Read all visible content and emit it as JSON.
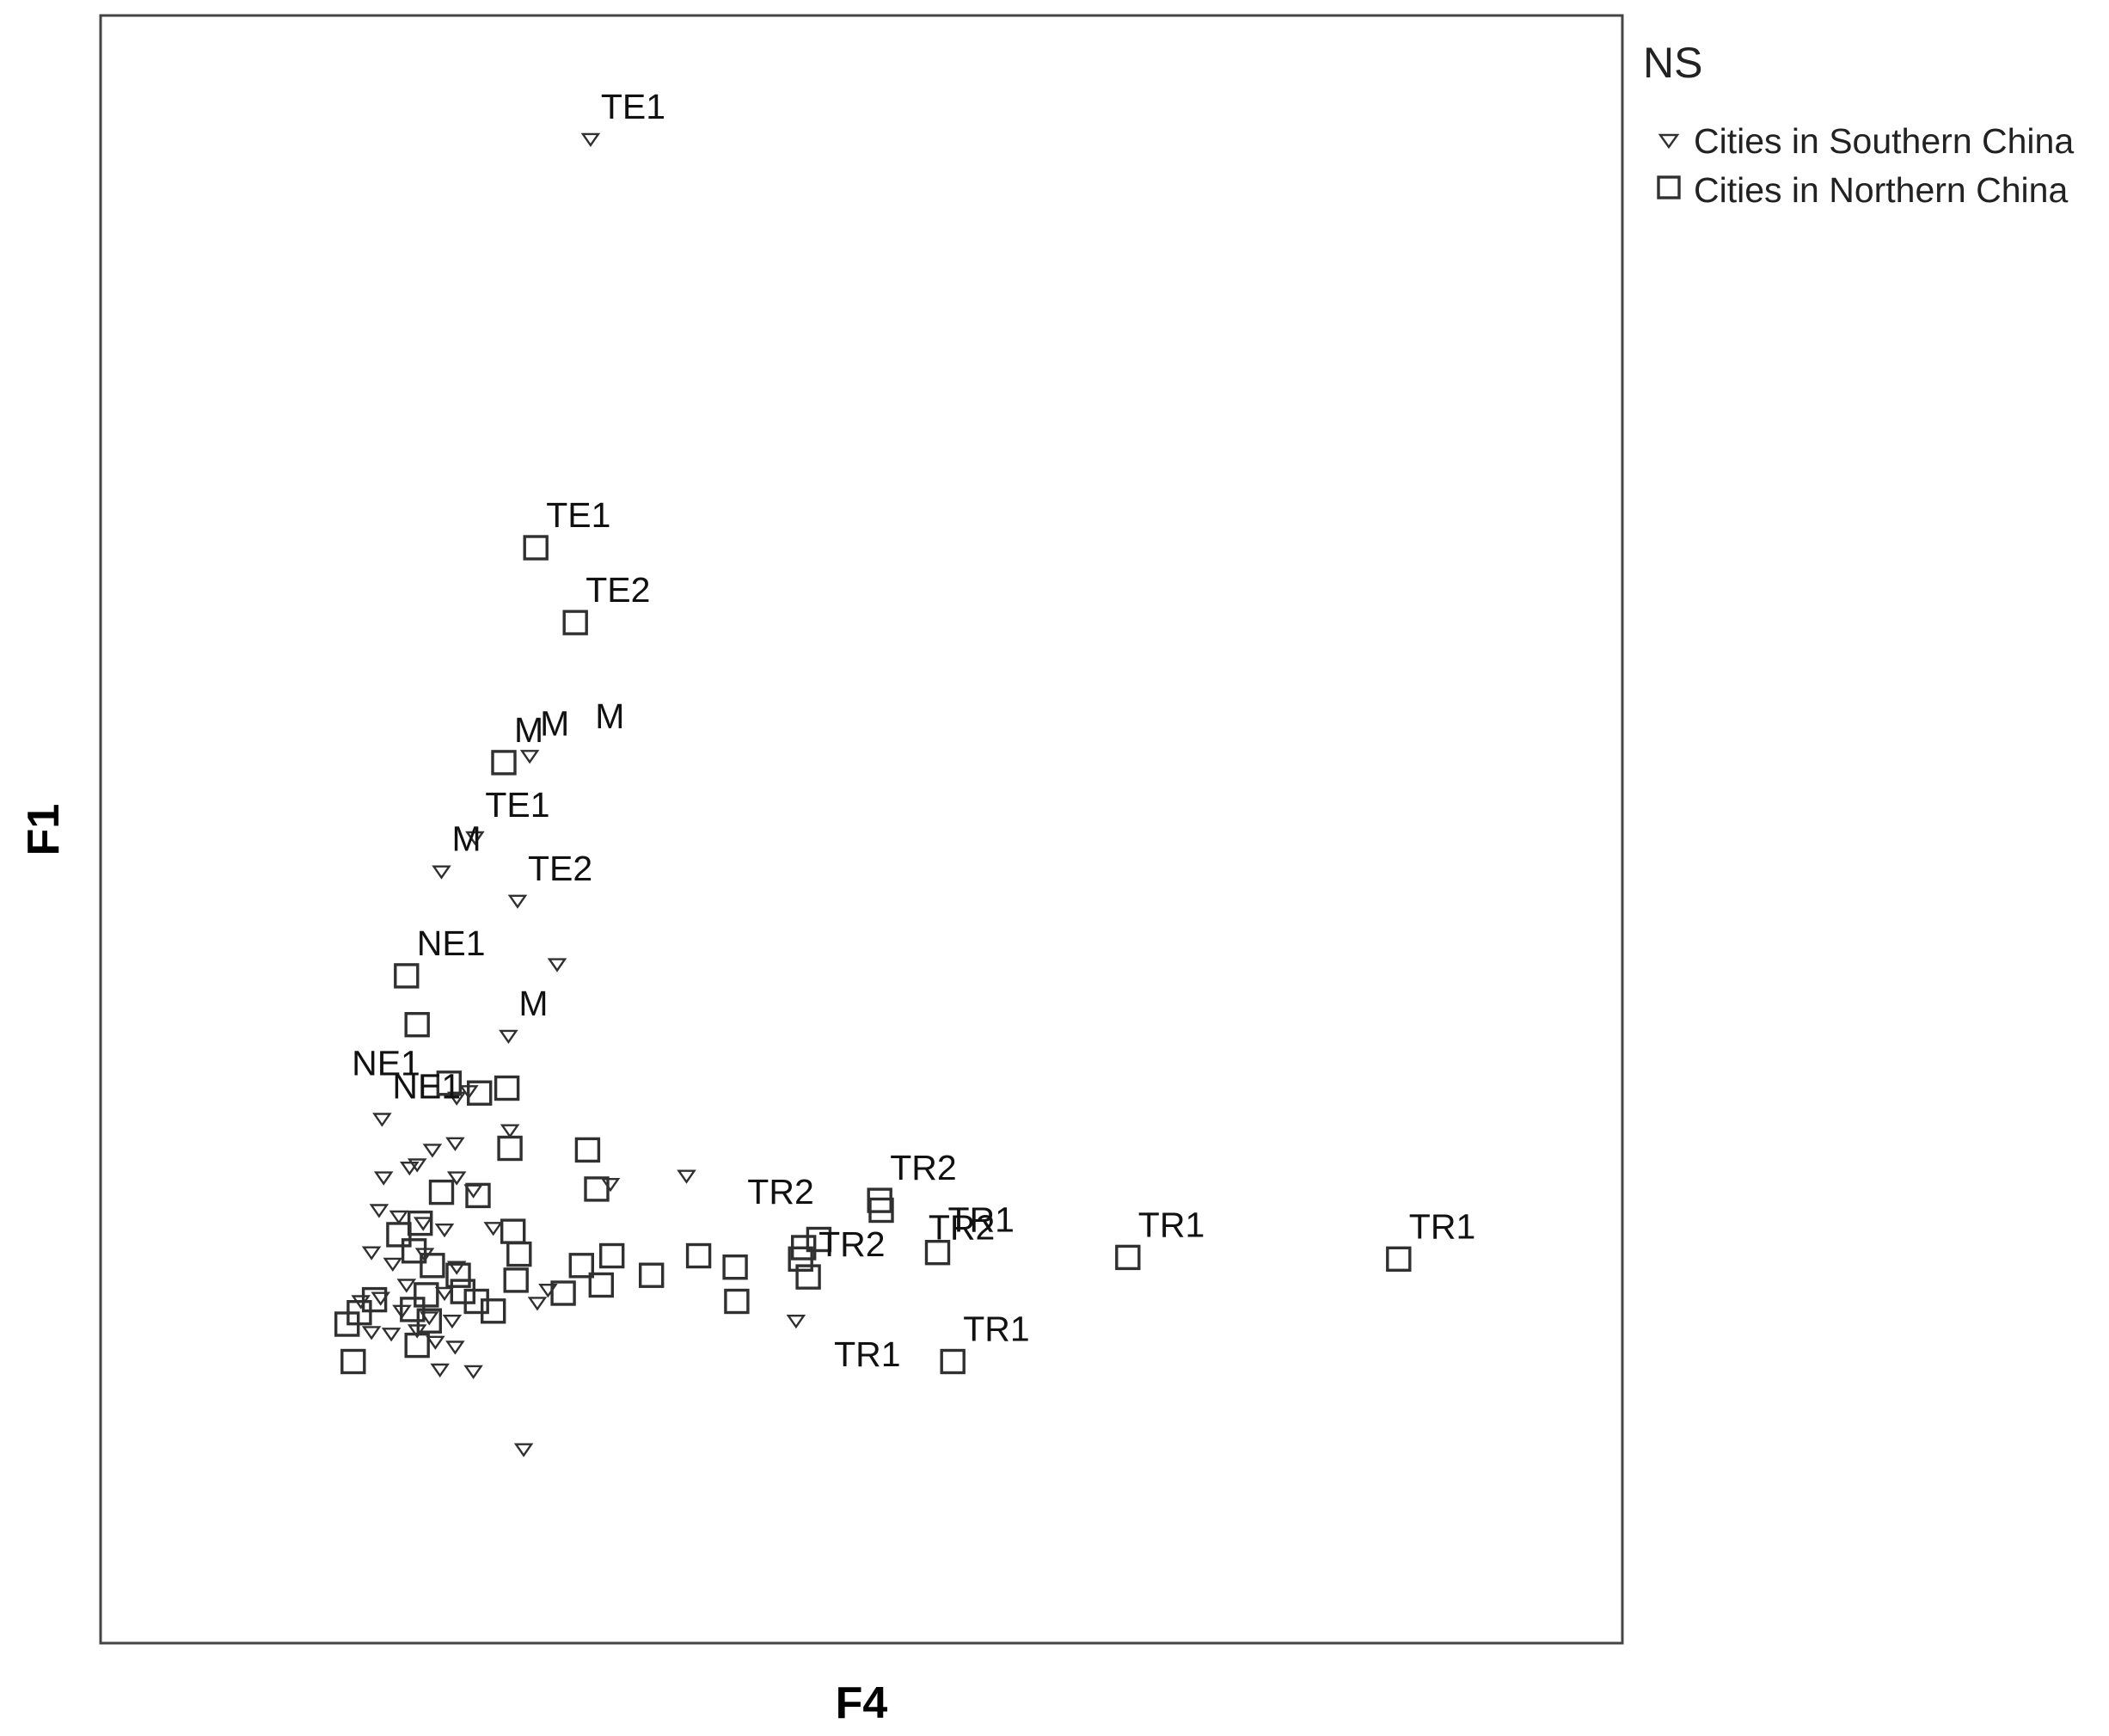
{
  "chart_data": {
    "type": "scatter",
    "xlabel": "F4",
    "ylabel": "F1",
    "legend": {
      "title": "NS",
      "placement": "right",
      "entries": [
        {
          "name": "Cities in Southern China",
          "marker": "down-triangle"
        },
        {
          "name": "Cities in Northern China",
          "marker": "square"
        }
      ]
    },
    "xlim": [
      0,
      100
    ],
    "ylim": [
      0,
      100
    ],
    "grid": false,
    "series": [
      {
        "name": "Cities in Southern China",
        "marker": "down-triangle",
        "points": [
          {
            "x": 32.2,
            "y": 92.4,
            "label": "TE1"
          },
          {
            "x": 28.2,
            "y": 54.5,
            "label": "M"
          },
          {
            "x": 24.6,
            "y": 49.5,
            "label": "TE1"
          },
          {
            "x": 22.4,
            "y": 47.4,
            "label": "M"
          },
          {
            "x": 27.4,
            "y": 45.6,
            "label": "TE2"
          },
          {
            "x": 30.0,
            "y": 41.7
          },
          {
            "x": 26.8,
            "y": 37.3,
            "label": "M"
          },
          {
            "x": 18.5,
            "y": 32.2,
            "label": "NE1"
          },
          {
            "x": 24.2,
            "y": 33.9
          },
          {
            "x": 23.4,
            "y": 33.5
          },
          {
            "x": 26.9,
            "y": 31.5
          },
          {
            "x": 23.3,
            "y": 30.7
          },
          {
            "x": 21.8,
            "y": 30.3
          },
          {
            "x": 20.3,
            "y": 29.2
          },
          {
            "x": 20.8,
            "y": 29.4
          },
          {
            "x": 18.6,
            "y": 28.6
          },
          {
            "x": 23.4,
            "y": 28.6
          },
          {
            "x": 24.5,
            "y": 27.8
          },
          {
            "x": 33.5,
            "y": 28.2
          },
          {
            "x": 38.5,
            "y": 28.7
          },
          {
            "x": 18.3,
            "y": 26.6
          },
          {
            "x": 19.6,
            "y": 26.2
          },
          {
            "x": 21.2,
            "y": 25.8
          },
          {
            "x": 22.6,
            "y": 25.4
          },
          {
            "x": 25.8,
            "y": 25.5
          },
          {
            "x": 17.8,
            "y": 24.0
          },
          {
            "x": 19.2,
            "y": 23.3
          },
          {
            "x": 21.3,
            "y": 23.9
          },
          {
            "x": 23.4,
            "y": 23.1
          },
          {
            "x": 20.1,
            "y": 22.0
          },
          {
            "x": 18.4,
            "y": 21.2
          },
          {
            "x": 22.6,
            "y": 21.5
          },
          {
            "x": 17.1,
            "y": 21.0
          },
          {
            "x": 19.8,
            "y": 20.4
          },
          {
            "x": 21.6,
            "y": 20.0
          },
          {
            "x": 23.1,
            "y": 19.8
          },
          {
            "x": 29.4,
            "y": 21.7
          },
          {
            "x": 28.7,
            "y": 20.9
          },
          {
            "x": 17.8,
            "y": 19.1
          },
          {
            "x": 19.1,
            "y": 19.0
          },
          {
            "x": 20.8,
            "y": 19.2
          },
          {
            "x": 22.0,
            "y": 18.5
          },
          {
            "x": 23.3,
            "y": 18.2
          },
          {
            "x": 45.7,
            "y": 19.8
          },
          {
            "x": 22.3,
            "y": 16.8
          },
          {
            "x": 24.5,
            "y": 16.7
          },
          {
            "x": 27.8,
            "y": 11.9
          }
        ]
      },
      {
        "name": "Cities in Northern China",
        "marker": "square",
        "points": [
          {
            "x": 28.6,
            "y": 67.3,
            "label": "TE1"
          },
          {
            "x": 31.2,
            "y": 62.7,
            "label": "TE2"
          },
          {
            "x": 26.5,
            "y": 54.1,
            "label": "M"
          },
          {
            "x": 20.1,
            "y": 41.0,
            "label": "NE1"
          },
          {
            "x": 20.8,
            "y": 38.0
          },
          {
            "x": 22.9,
            "y": 34.4
          },
          {
            "x": 24.9,
            "y": 33.8
          },
          {
            "x": 26.7,
            "y": 34.1
          },
          {
            "x": 26.9,
            "y": 30.4
          },
          {
            "x": 32.0,
            "y": 30.3
          },
          {
            "x": 22.4,
            "y": 27.7
          },
          {
            "x": 24.8,
            "y": 27.5
          },
          {
            "x": 32.6,
            "y": 27.9
          },
          {
            "x": 51.2,
            "y": 27.2,
            "label": "TR2"
          },
          {
            "x": 51.3,
            "y": 26.6
          },
          {
            "x": 19.6,
            "y": 25.1
          },
          {
            "x": 21.0,
            "y": 25.8
          },
          {
            "x": 27.1,
            "y": 25.3
          },
          {
            "x": 20.6,
            "y": 24.1
          },
          {
            "x": 27.5,
            "y": 23.9
          },
          {
            "x": 33.6,
            "y": 23.8
          },
          {
            "x": 39.3,
            "y": 23.8
          },
          {
            "x": 46.2,
            "y": 24.3
          },
          {
            "x": 47.2,
            "y": 24.8
          },
          {
            "x": 55.0,
            "y": 24.0,
            "label": "TR1"
          },
          {
            "x": 67.5,
            "y": 23.7,
            "label": "TR1"
          },
          {
            "x": 85.3,
            "y": 23.6,
            "label": "TR1"
          },
          {
            "x": 21.8,
            "y": 23.2
          },
          {
            "x": 23.5,
            "y": 22.6
          },
          {
            "x": 27.3,
            "y": 22.3
          },
          {
            "x": 31.6,
            "y": 23.2
          },
          {
            "x": 36.2,
            "y": 22.6
          },
          {
            "x": 41.7,
            "y": 23.1
          },
          {
            "x": 46.0,
            "y": 23.6
          },
          {
            "x": 46.5,
            "y": 22.5,
            "label": "TR2"
          },
          {
            "x": 21.4,
            "y": 21.4
          },
          {
            "x": 23.8,
            "y": 21.6
          },
          {
            "x": 30.4,
            "y": 21.5
          },
          {
            "x": 32.9,
            "y": 22.0
          },
          {
            "x": 41.8,
            "y": 21.0
          },
          {
            "x": 17.0,
            "y": 20.3
          },
          {
            "x": 18.0,
            "y": 21.1
          },
          {
            "x": 20.5,
            "y": 20.5
          },
          {
            "x": 24.7,
            "y": 21.0
          },
          {
            "x": 25.8,
            "y": 20.4
          },
          {
            "x": 21.6,
            "y": 19.8
          },
          {
            "x": 16.2,
            "y": 19.6
          },
          {
            "x": 20.8,
            "y": 18.3
          },
          {
            "x": 16.6,
            "y": 17.3
          },
          {
            "x": 56.0,
            "y": 17.3,
            "label": "TR1"
          }
        ]
      }
    ],
    "annotations": [
      {
        "text": "M",
        "x": 32.5,
        "y": 56.2
      },
      {
        "text": "NE1",
        "x": 16.5,
        "y": 34.9
      },
      {
        "text": "TR2",
        "x": 42.5,
        "y": 27.0
      },
      {
        "text": "TR2",
        "x": 54.4,
        "y": 24.8
      },
      {
        "text": "TR1",
        "x": 48.2,
        "y": 17.0
      }
    ]
  }
}
